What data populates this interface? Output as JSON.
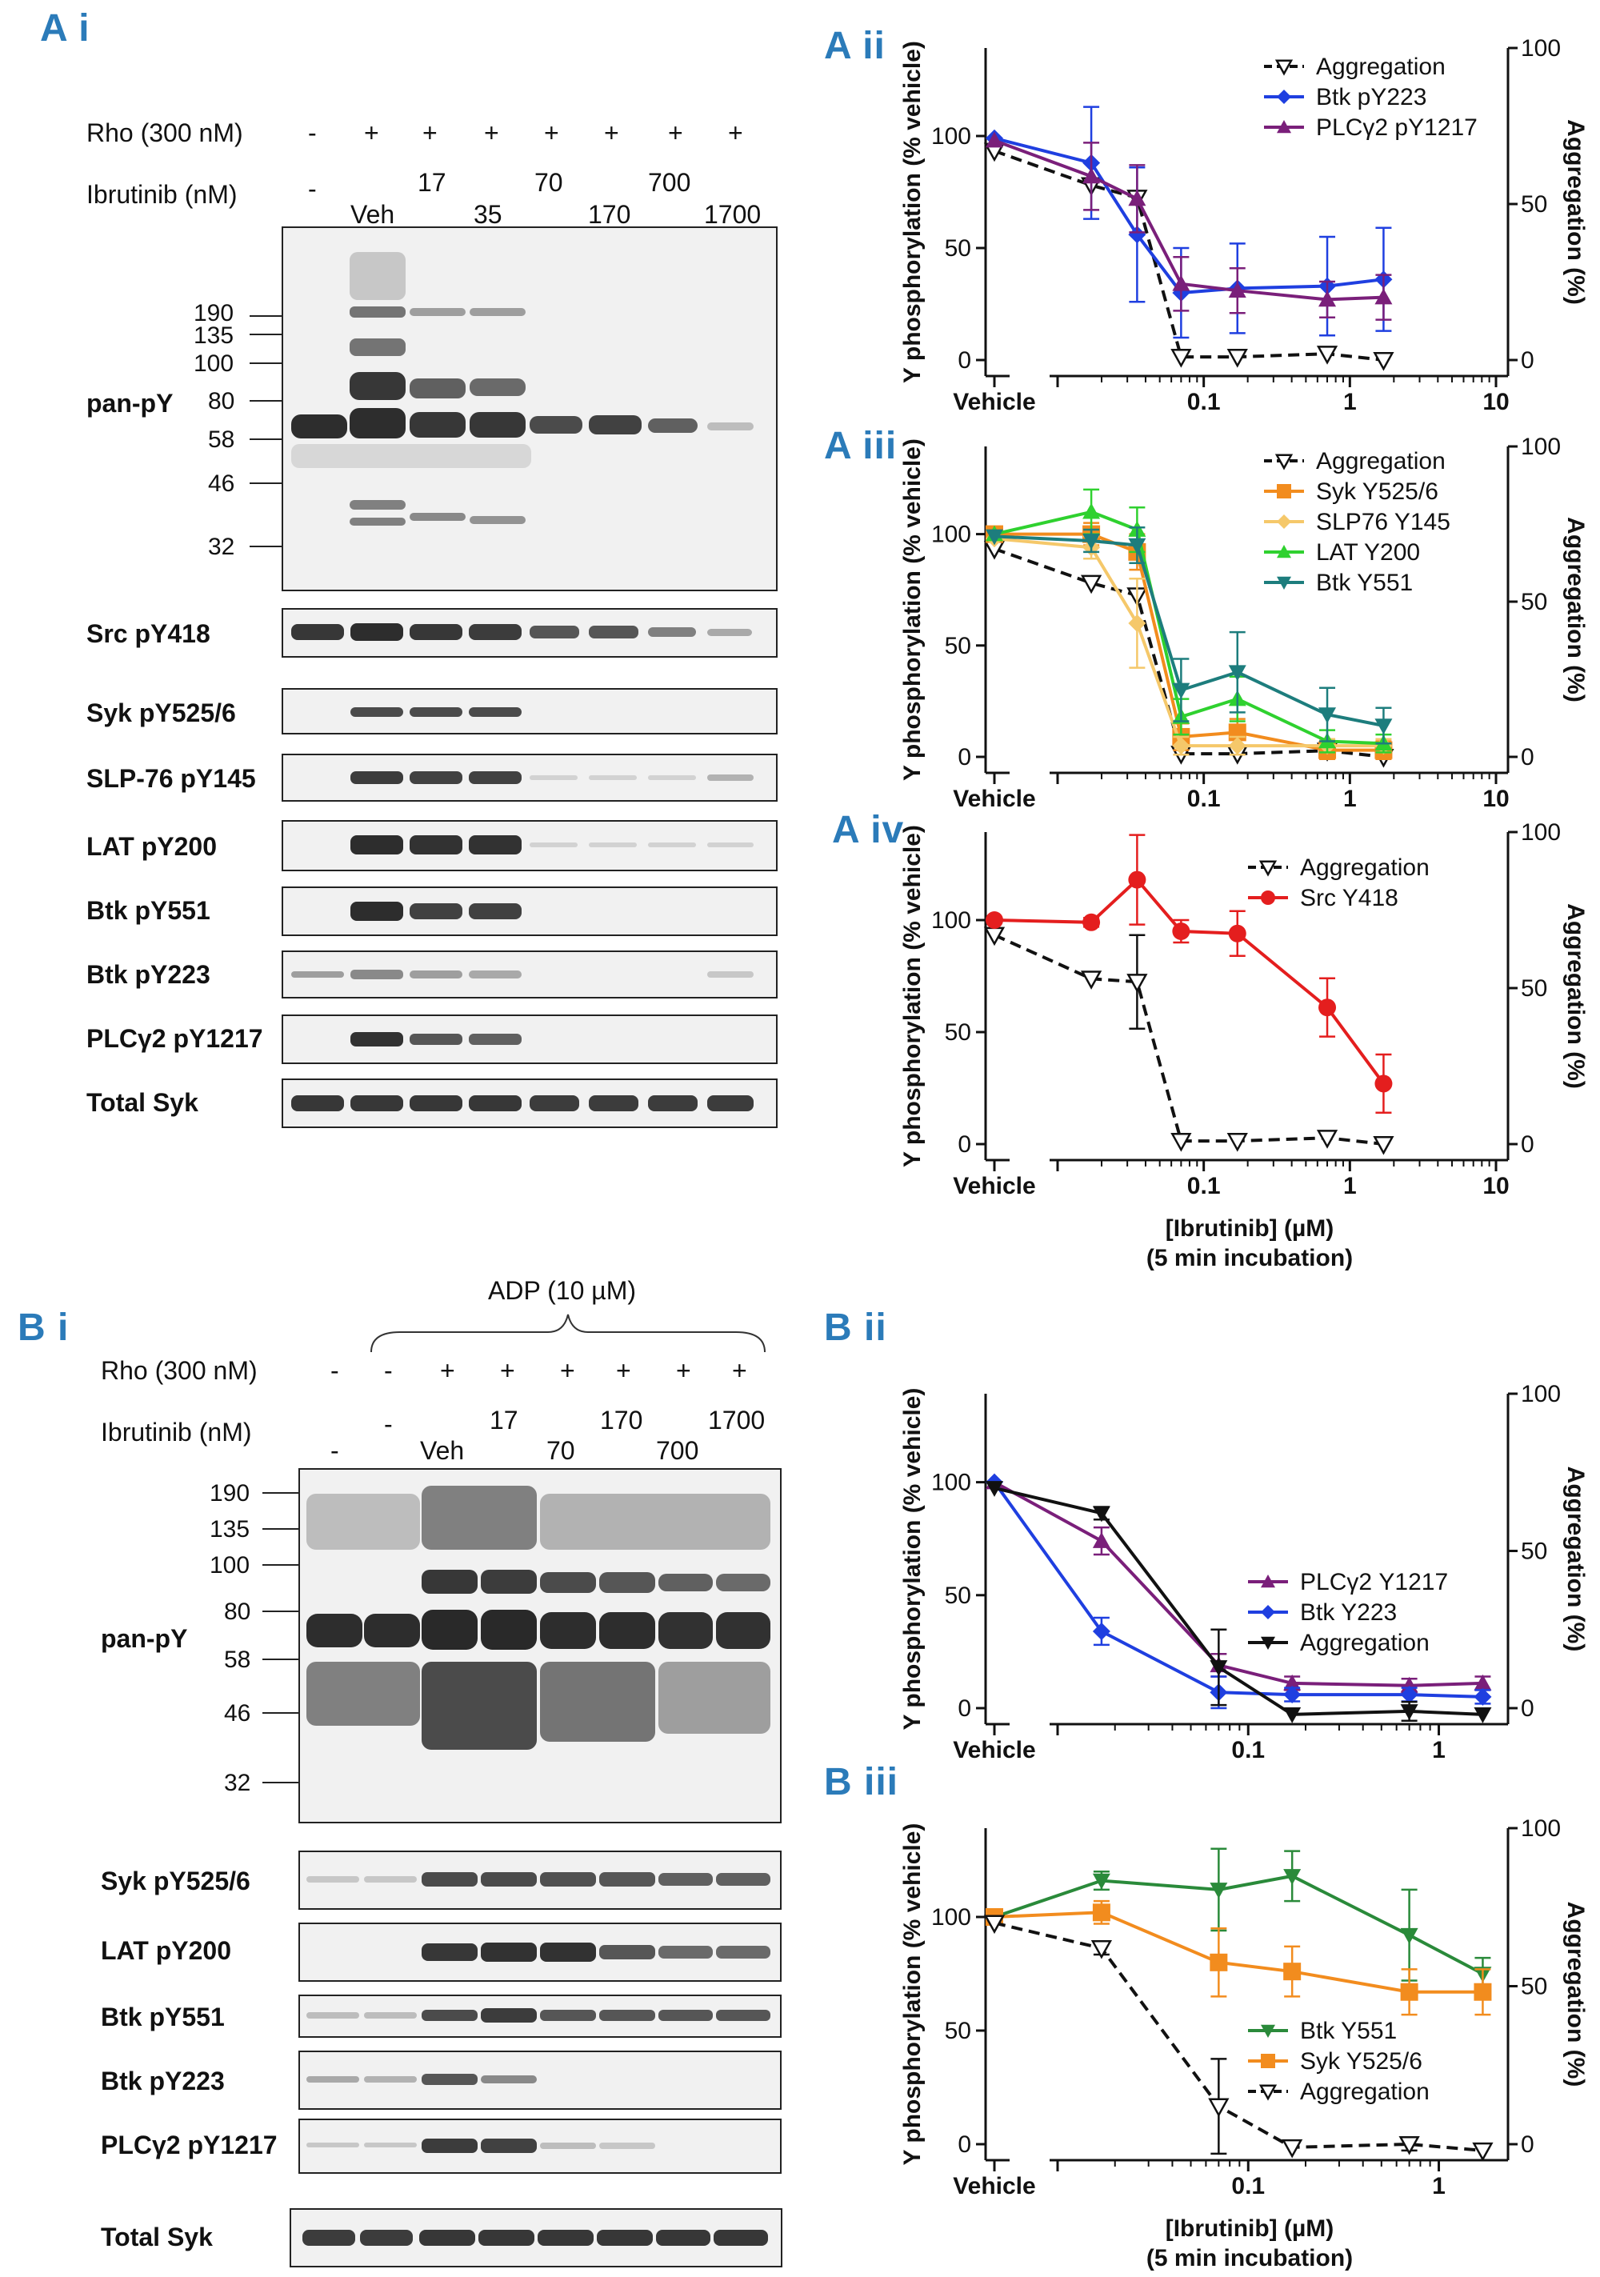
{
  "panels": {
    "Ai": "A i",
    "Aii": "A ii",
    "Aiii": "A iii",
    "Aiv": "A iv",
    "Bi": "B i",
    "Bii": "B ii",
    "Biii": "B iii"
  },
  "colors": {
    "panel_label": "#2b7bb9",
    "purple": "#7a1f7a",
    "blue": "#1f3fe0",
    "orange": "#f28c1e",
    "yellow": "#f5c86a",
    "green": "#2fd12f",
    "teal": "#1d7d7d",
    "red": "#e41e1e",
    "darkgreen": "#2a8a3a",
    "black": "#111111"
  },
  "blotA": {
    "rho_label": "Rho (300 nM)",
    "rho_signs": [
      "-",
      "+",
      "+",
      "+",
      "+",
      "+",
      "+",
      "+"
    ],
    "ibr_label": "Ibrutinib (nM)",
    "ibr_row1": [
      "-",
      "17",
      "70",
      "700"
    ],
    "ibr_row2": [
      "Veh",
      "35",
      "170",
      "1700"
    ],
    "mw": [
      "190",
      "135",
      "100",
      "80",
      "58",
      "46",
      "32"
    ],
    "strips": [
      "pan-pY",
      "Src pY418",
      "Syk pY525/6",
      "SLP-76 pY145",
      "LAT pY200",
      "Btk pY551",
      "Btk pY223",
      "PLCγ2 pY1217",
      "Total Syk"
    ]
  },
  "blotB": {
    "adp_label": "ADP (10 µM)",
    "rho_label": "Rho (300 nM)",
    "rho_signs": [
      "-",
      "-",
      "+",
      "+",
      "+",
      "+",
      "+",
      "+"
    ],
    "ibr_label": "Ibrutinib (nM)",
    "ibr_row1": [
      "-",
      "17",
      "170",
      "1700"
    ],
    "ibr_row2": [
      "-",
      "Veh",
      "70",
      "700"
    ],
    "mw": [
      "190",
      "135",
      "100",
      "80",
      "58",
      "46",
      "32"
    ],
    "strips": [
      "pan-pY",
      "Syk pY525/6",
      "LAT pY200",
      "Btk pY551",
      "Btk pY223",
      "PLCγ2 pY1217",
      "Total Syk"
    ]
  },
  "chart_data": [
    {
      "id": "Aii",
      "type": "line",
      "ylabel": "Y phosphorylation (% vehicle)",
      "y2label": "Aggregation (%)",
      "x": [
        0.017,
        0.035,
        0.07,
        0.17,
        0.7,
        1.7
      ],
      "x_vehicle": "Vehicle",
      "xscale": "log",
      "xticks": [
        "Vehicle",
        "0.1",
        "1",
        "10"
      ],
      "yticks": [
        "0",
        "50",
        "100"
      ],
      "y2ticks": [
        "0",
        "50",
        "100"
      ],
      "series": [
        {
          "name": "Aggregation",
          "axis": "right",
          "color": "#111111",
          "dashed": true,
          "marker": "tri-down-open",
          "vehicle": 67,
          "values": [
            56,
            52,
            1,
            1,
            2,
            0
          ]
        },
        {
          "name": "Btk pY223",
          "color": "#1f3fe0",
          "marker": "diamond",
          "vehicle": 99,
          "values": [
            88,
            56,
            30,
            32,
            33,
            36
          ],
          "err": [
            25,
            30,
            20,
            20,
            22,
            23
          ]
        },
        {
          "name": "PLCγ2 pY1217",
          "color": "#7a1f7a",
          "marker": "tri-up",
          "vehicle": 98,
          "values": [
            82,
            72,
            34,
            31,
            27,
            28
          ],
          "err": [
            15,
            15,
            12,
            10,
            8,
            10
          ]
        }
      ]
    },
    {
      "id": "Aiii",
      "type": "line",
      "ylabel": "Y phosphorylation (% vehicle)",
      "y2label": "Aggregation (%)",
      "x": [
        0.017,
        0.035,
        0.07,
        0.17,
        0.7,
        1.7
      ],
      "x_vehicle": "Vehicle",
      "xscale": "log",
      "xticks": [
        "Vehicle",
        "0.1",
        "1",
        "10"
      ],
      "yticks": [
        "0",
        "50",
        "100"
      ],
      "y2ticks": [
        "0",
        "50",
        "100"
      ],
      "series": [
        {
          "name": "Aggregation",
          "axis": "right",
          "color": "#111111",
          "dashed": true,
          "marker": "tri-down-open",
          "vehicle": 67,
          "values": [
            56,
            52,
            1,
            1,
            2,
            0
          ]
        },
        {
          "name": "Syk Y525/6",
          "color": "#f28c1e",
          "marker": "square",
          "vehicle": 100,
          "values": [
            100,
            92,
            9,
            11,
            3,
            3
          ],
          "err": [
            5,
            8,
            6,
            6,
            4,
            4
          ]
        },
        {
          "name": "SLP76 Y145",
          "color": "#f5c86a",
          "marker": "diamond",
          "vehicle": 98,
          "values": [
            94,
            60,
            5,
            5,
            5,
            5
          ],
          "err": [
            5,
            20,
            4,
            4,
            3,
            3
          ]
        },
        {
          "name": "LAT Y200",
          "color": "#2fd12f",
          "marker": "tri-up",
          "vehicle": 100,
          "values": [
            110,
            102,
            18,
            26,
            7,
            6
          ],
          "err": [
            10,
            10,
            8,
            10,
            5,
            4
          ]
        },
        {
          "name": "Btk Y551",
          "color": "#1d7d7d",
          "marker": "tri-down",
          "vehicle": 99,
          "values": [
            97,
            95,
            30,
            38,
            19,
            14
          ],
          "err": [
            5,
            8,
            14,
            18,
            12,
            8
          ]
        }
      ]
    },
    {
      "id": "Aiv",
      "type": "line",
      "ylabel": "Y phosphorylation (% vehicle)",
      "y2label": "Aggregation (%)",
      "x": [
        0.017,
        0.035,
        0.07,
        0.17,
        0.7,
        1.7
      ],
      "x_vehicle": "Vehicle",
      "xscale": "log",
      "xticks": [
        "Vehicle",
        "0.1",
        "1",
        "10"
      ],
      "yticks": [
        "0",
        "50",
        "100"
      ],
      "y2ticks": [
        "0",
        "50",
        "100"
      ],
      "xlabel": "[Ibrutinib] (µM)",
      "xlabel2": "(5 min incubation)",
      "series": [
        {
          "name": "Aggregation",
          "axis": "right",
          "color": "#111111",
          "dashed": true,
          "marker": "tri-down-open",
          "vehicle": 67,
          "values": [
            53,
            52,
            1,
            1,
            2,
            0
          ],
          "err": [
            0,
            15,
            0,
            0,
            0,
            0
          ]
        },
        {
          "name": "Src Y418",
          "color": "#e41e1e",
          "marker": "circle",
          "vehicle": 100,
          "values": [
            99,
            118,
            95,
            94,
            61,
            27
          ],
          "err": [
            2,
            20,
            5,
            10,
            13,
            13
          ]
        }
      ]
    },
    {
      "id": "Bii",
      "type": "line",
      "ylabel": "Y phosphorylation (% vehicle)",
      "y2label": "Aggregation (%)",
      "x": [
        0.017,
        0.07,
        0.17,
        0.7,
        1.7
      ],
      "x_vehicle": "Vehicle",
      "xscale": "log",
      "xticks": [
        "Vehicle",
        "0.1",
        "1"
      ],
      "yticks": [
        "0",
        "50",
        "100"
      ],
      "y2ticks": [
        "0",
        "50",
        "100"
      ],
      "series": [
        {
          "name": "PLCγ2 Y1217",
          "color": "#7a1f7a",
          "marker": "tri-up",
          "vehicle": 100,
          "values": [
            74,
            19,
            11,
            10,
            11
          ],
          "err": [
            6,
            5,
            3,
            3,
            3
          ]
        },
        {
          "name": "Btk Y223",
          "color": "#1f3fe0",
          "marker": "diamond",
          "vehicle": 100,
          "values": [
            34,
            7,
            6,
            6,
            5
          ],
          "err": [
            6,
            7,
            3,
            3,
            3
          ]
        },
        {
          "name": "Aggregation",
          "axis": "right",
          "color": "#111111",
          "marker": "tri-down",
          "vehicle": 70,
          "values": [
            62,
            13,
            -2,
            -1,
            -2
          ],
          "err": [
            2,
            12,
            0,
            3,
            0
          ]
        }
      ]
    },
    {
      "id": "Biii",
      "type": "line",
      "ylabel": "Y phosphorylation (% vehicle)",
      "y2label": "Aggregation (%)",
      "x": [
        0.017,
        0.07,
        0.17,
        0.7,
        1.7
      ],
      "x_vehicle": "Vehicle",
      "xscale": "log",
      "xticks": [
        "Vehicle",
        "0.1",
        "1"
      ],
      "yticks": [
        "0",
        "50",
        "100"
      ],
      "y2ticks": [
        "0",
        "50",
        "100"
      ],
      "xlabel": "[Ibrutinib] (µM)",
      "xlabel2": "(5 min  incubation)",
      "series": [
        {
          "name": "Btk Y551",
          "color": "#2a8a3a",
          "marker": "tri-down",
          "vehicle": 100,
          "values": [
            116,
            112,
            118,
            92,
            75
          ],
          "err": [
            4,
            18,
            11,
            20,
            7
          ]
        },
        {
          "name": "Syk Y525/6",
          "color": "#f28c1e",
          "marker": "square",
          "vehicle": 100,
          "values": [
            102,
            80,
            76,
            67,
            67
          ],
          "err": [
            5,
            15,
            11,
            10,
            10
          ]
        },
        {
          "name": "Aggregation",
          "axis": "right",
          "color": "#111111",
          "dashed": true,
          "marker": "tri-down-open",
          "vehicle": 70,
          "values": [
            62,
            12,
            -1,
            0,
            -2
          ],
          "err": [
            2,
            15,
            0,
            2,
            0
          ]
        }
      ]
    }
  ]
}
